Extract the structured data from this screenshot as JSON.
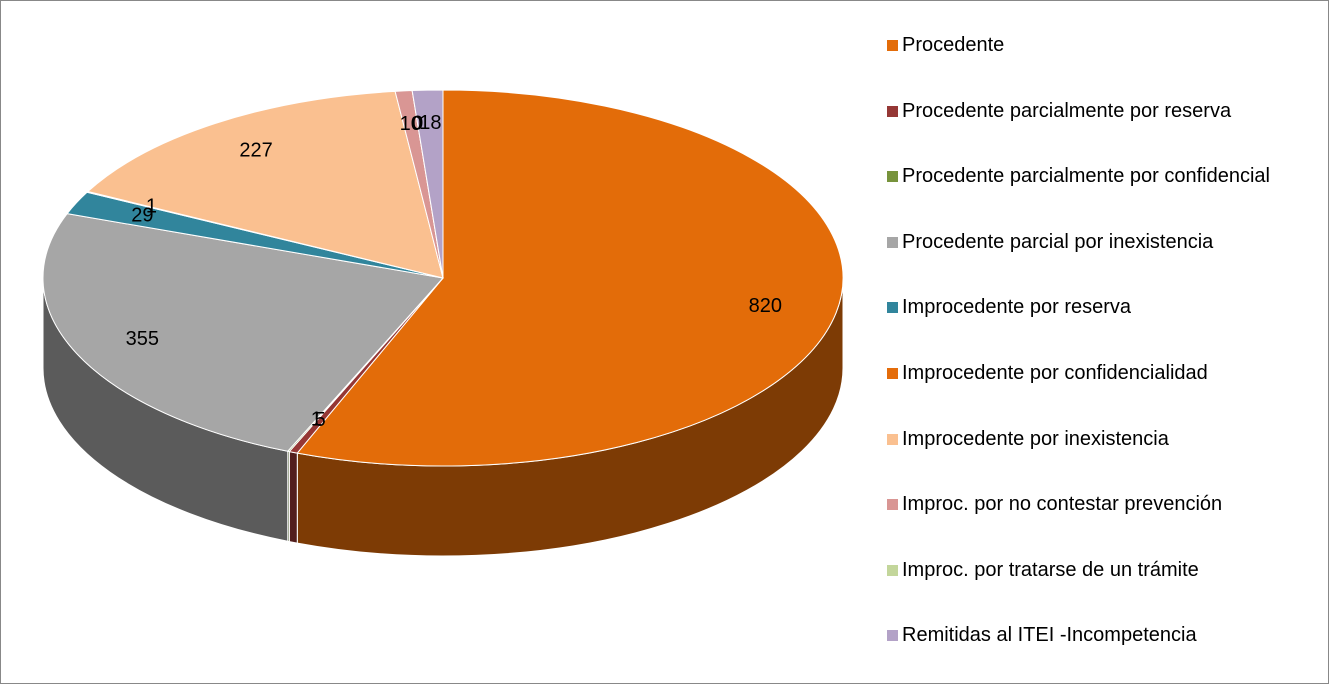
{
  "chart_data": {
    "type": "pie",
    "categories": [
      "Procedente",
      "Procedente parcialmente por reserva",
      "Procedente parcialmente por confidencial",
      "Procedente parcial por inexistencia",
      "Improcedente por reserva",
      "Improcedente por confidencialidad",
      "Improcedente por inexistencia",
      "Improc. por no contestar prevención",
      "Improc. por tratarse de un trámite",
      "Remitidas al ITEI -Incompetencia"
    ],
    "values": [
      820,
      5,
      1,
      355,
      29,
      1,
      227,
      10,
      0,
      18
    ],
    "colors": [
      "#e36c09",
      "#953735",
      "#77933c",
      "#a6a6a6",
      "#31859c",
      "#e46c0a",
      "#fac090",
      "#d99694",
      "#c3d69b",
      "#b3a2c7"
    ],
    "legend": "right"
  }
}
